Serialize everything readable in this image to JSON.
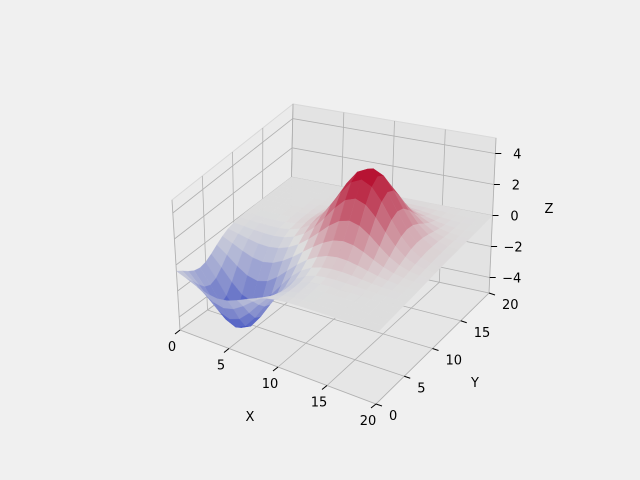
{
  "chart_data": {
    "type": "surface",
    "x": {
      "label": "X",
      "ticks": [
        0,
        5,
        10,
        15,
        20
      ],
      "range": [
        0,
        20
      ]
    },
    "y": {
      "label": "Y",
      "ticks": [
        0,
        5,
        10,
        15,
        20
      ],
      "range": [
        0,
        20
      ]
    },
    "z": {
      "label": "Z",
      "ticks": [
        4,
        2,
        0,
        -2,
        -4
      ],
      "tick_labels": [
        "4",
        "2",
        "0",
        "−2",
        "−4"
      ],
      "range": [
        -5,
        5
      ]
    },
    "colormap": "coolwarm",
    "colors": {
      "low": "#3b4cc0",
      "mid": "#dddddd",
      "high": "#b40426"
    },
    "surface": {
      "grid_points": 21,
      "peak": {
        "x": 12,
        "y": 12,
        "z": 5.0
      },
      "trough": {
        "x": 4,
        "y": 4,
        "z": -5.0
      },
      "baseline": 0
    },
    "grid": true
  }
}
